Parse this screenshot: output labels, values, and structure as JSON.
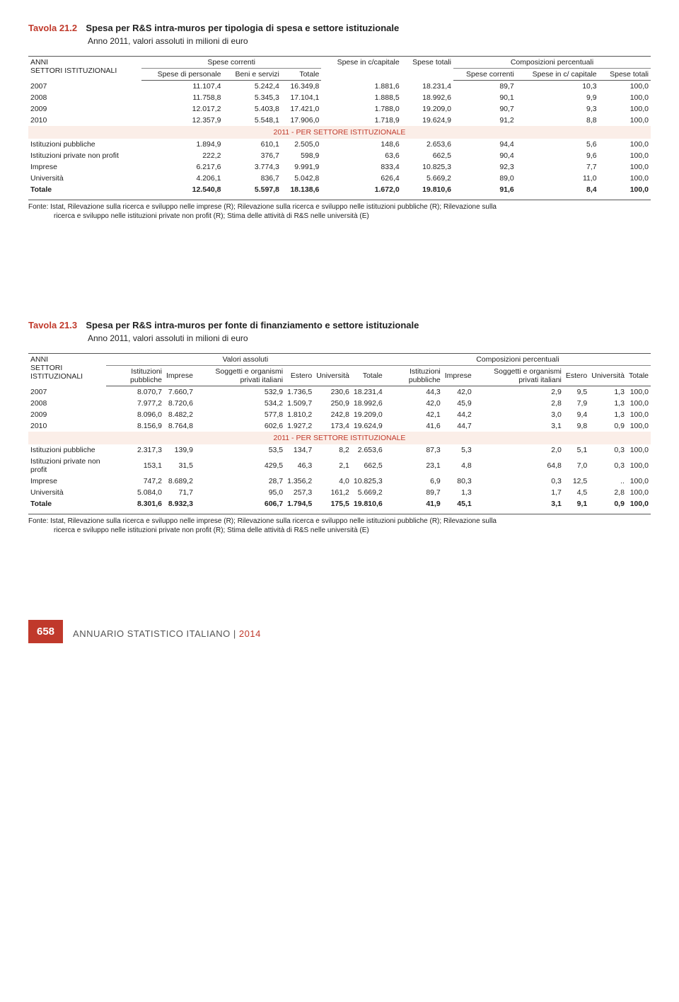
{
  "colors": {
    "accent": "#c0392b",
    "band_bg": "#fbeee8",
    "rule": "#555555",
    "text": "#222222"
  },
  "table1": {
    "tavola": "Tavola 21.2",
    "title": "Spesa per R&S intra-muros per tipologia di spesa e settore istituzionale",
    "subtitle": "Anno 2011, valori assoluti in milioni di euro",
    "head": {
      "anni": "ANNI",
      "settori": "SETTORI ISTITUZIONALI",
      "spese_correnti_grp": "Spese correnti",
      "spese_di_personale": "Spese di personale",
      "beni_e_servizi": "Beni e servizi",
      "totale": "Totale",
      "spese_in_ccapitale": "Spese in c/capitale",
      "spese_totali": "Spese totali",
      "composizioni": "Composizioni percentuali",
      "spese_correnti": "Spese correnti",
      "spese_in_c_capitale": "Spese in c/ capitale",
      "spese_totali_pct": "Spese totali"
    },
    "rows_years": [
      {
        "y": "2007",
        "a": "11.107,4",
        "b": "5.242,4",
        "c": "16.349,8",
        "d": "1.881,6",
        "e": "18.231,4",
        "f": "89,7",
        "g": "10,3",
        "h": "100,0"
      },
      {
        "y": "2008",
        "a": "11.758,8",
        "b": "5.345,3",
        "c": "17.104,1",
        "d": "1.888,5",
        "e": "18.992,6",
        "f": "90,1",
        "g": "9,9",
        "h": "100,0"
      },
      {
        "y": "2009",
        "a": "12.017,2",
        "b": "5.403,8",
        "c": "17.421,0",
        "d": "1.788,0",
        "e": "19.209,0",
        "f": "90,7",
        "g": "9,3",
        "h": "100,0"
      },
      {
        "y": "2010",
        "a": "12.357,9",
        "b": "5.548,1",
        "c": "17.906,0",
        "d": "1.718,9",
        "e": "19.624,9",
        "f": "91,2",
        "g": "8,8",
        "h": "100,0"
      }
    ],
    "band": "2011 - PER SETTORE ISTITUZIONALE",
    "rows_sector": [
      {
        "y": "Istituzioni pubbliche",
        "a": "1.894,9",
        "b": "610,1",
        "c": "2.505,0",
        "d": "148,6",
        "e": "2.653,6",
        "f": "94,4",
        "g": "5,6",
        "h": "100,0"
      },
      {
        "y": "Istituzioni private non profit",
        "a": "222,2",
        "b": "376,7",
        "c": "598,9",
        "d": "63,6",
        "e": "662,5",
        "f": "90,4",
        "g": "9,6",
        "h": "100,0"
      },
      {
        "y": "Imprese",
        "a": "6.217,6",
        "b": "3.774,3",
        "c": "9.991,9",
        "d": "833,4",
        "e": "10.825,3",
        "f": "92,3",
        "g": "7,7",
        "h": "100,0"
      },
      {
        "y": "Università",
        "a": "4.206,1",
        "b": "836,7",
        "c": "5.042,8",
        "d": "626,4",
        "e": "5.669,2",
        "f": "89,0",
        "g": "11,0",
        "h": "100,0"
      }
    ],
    "total": {
      "y": "Totale",
      "a": "12.540,8",
      "b": "5.597,8",
      "c": "18.138,6",
      "d": "1.672,0",
      "e": "19.810,6",
      "f": "91,6",
      "g": "8,4",
      "h": "100,0"
    }
  },
  "fonte": {
    "label": "Fonte:",
    "text1": "Istat, Rilevazione sulla ricerca e sviluppo nelle imprese (R); Rilevazione sulla ricerca e sviluppo nelle istituzioni pubbliche (R); Rilevazione sulla",
    "text2": "ricerca e sviluppo nelle istituzioni private non profit (R); Stima delle attività di R&S nelle università (E)"
  },
  "table2": {
    "tavola": "Tavola 21.3",
    "title": "Spesa per R&S intra-muros per fonte di finanziamento e settore istituzionale",
    "subtitle": "Anno 2011, valori assoluti in milioni di euro",
    "head": {
      "anni": "ANNI",
      "settori": "SETTORI ISTITUZIONALI",
      "valori_assoluti": "Valori assoluti",
      "composizioni": "Composizioni percentuali",
      "ist_pub": "Istituzioni pubbliche",
      "imprese": "Imprese",
      "soggetti": "Soggetti e organismi privati italiani",
      "estero": "Estero",
      "universita": "Università",
      "totale": "Totale"
    },
    "rows_years": [
      {
        "y": "2007",
        "a": "8.070,7",
        "b": "7.660,7",
        "c": "532,9",
        "d": "1.736,5",
        "e": "230,6",
        "f": "18.231,4",
        "g": "44,3",
        "h": "42,0",
        "i": "2,9",
        "j": "9,5",
        "k": "1,3",
        "l": "100,0"
      },
      {
        "y": "2008",
        "a": "7.977,2",
        "b": "8.720,6",
        "c": "534,2",
        "d": "1.509,7",
        "e": "250,9",
        "f": "18.992,6",
        "g": "42,0",
        "h": "45,9",
        "i": "2,8",
        "j": "7,9",
        "k": "1,3",
        "l": "100,0"
      },
      {
        "y": "2009",
        "a": "8.096,0",
        "b": "8.482,2",
        "c": "577,8",
        "d": "1.810,2",
        "e": "242,8",
        "f": "19.209,0",
        "g": "42,1",
        "h": "44,2",
        "i": "3,0",
        "j": "9,4",
        "k": "1,3",
        "l": "100,0"
      },
      {
        "y": "2010",
        "a": "8.156,9",
        "b": "8.764,8",
        "c": "602,6",
        "d": "1.927,2",
        "e": "173,4",
        "f": "19.624,9",
        "g": "41,6",
        "h": "44,7",
        "i": "3,1",
        "j": "9,8",
        "k": "0,9",
        "l": "100,0"
      }
    ],
    "band": "2011 - PER SETTORE ISTITUZIONALE",
    "rows_sector": [
      {
        "y": "Istituzioni pubbliche",
        "a": "2.317,3",
        "b": "139,9",
        "c": "53,5",
        "d": "134,7",
        "e": "8,2",
        "f": "2.653,6",
        "g": "87,3",
        "h": "5,3",
        "i": "2,0",
        "j": "5,1",
        "k": "0,3",
        "l": "100,0"
      },
      {
        "y": "Istituzioni private non profit",
        "a": "153,1",
        "b": "31,5",
        "c": "429,5",
        "d": "46,3",
        "e": "2,1",
        "f": "662,5",
        "g": "23,1",
        "h": "4,8",
        "i": "64,8",
        "j": "7,0",
        "k": "0,3",
        "l": "100,0"
      },
      {
        "y": "Imprese",
        "a": "747,2",
        "b": "8.689,2",
        "c": "28,7",
        "d": "1.356,2",
        "e": "4,0",
        "f": "10.825,3",
        "g": "6,9",
        "h": "80,3",
        "i": "0,3",
        "j": "12,5",
        "k": "..",
        "l": "100,0"
      },
      {
        "y": "Università",
        "a": "5.084,0",
        "b": "71,7",
        "c": "95,0",
        "d": "257,3",
        "e": "161,2",
        "f": "5.669,2",
        "g": "89,7",
        "h": "1,3",
        "i": "1,7",
        "j": "4,5",
        "k": "2,8",
        "l": "100,0"
      }
    ],
    "total": {
      "y": "Totale",
      "a": "8.301,6",
      "b": "8.932,3",
      "c": "606,7",
      "d": "1.794,5",
      "e": "175,5",
      "f": "19.810,6",
      "g": "41,9",
      "h": "45,1",
      "i": "3,1",
      "j": "9,1",
      "k": "0,9",
      "l": "100,0"
    }
  },
  "footer": {
    "page": "658",
    "book": "ANNUARIO STATISTICO ITALIANO",
    "sep": " | ",
    "year": "2014"
  }
}
